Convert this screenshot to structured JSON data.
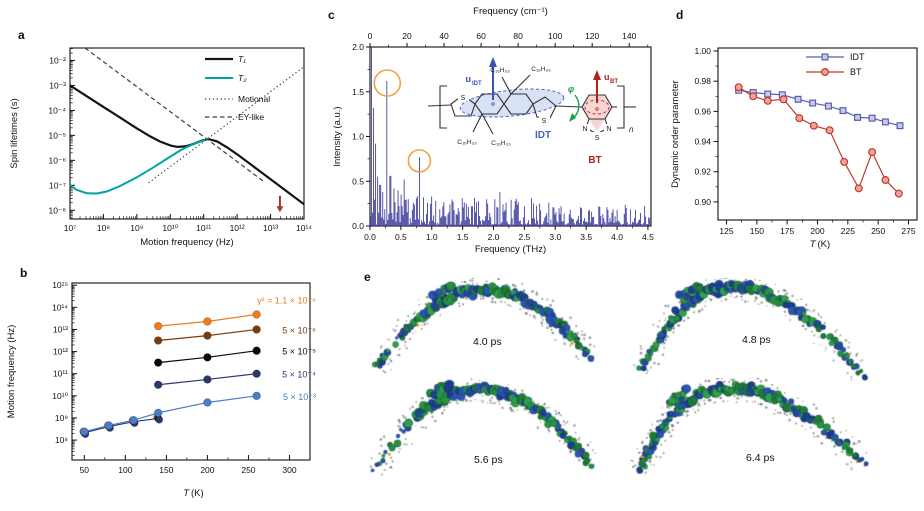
{
  "panels": {
    "a": {
      "letter": "a"
    },
    "b": {
      "letter": "b"
    },
    "c": {
      "letter": "c"
    },
    "d": {
      "letter": "d"
    },
    "e": {
      "letter": "e"
    }
  },
  "inset": {
    "u": "u",
    "idt_sub": "IDT",
    "bt_sub": "BT",
    "phi": "φ",
    "idt_label": "IDT",
    "bt_label": "BT",
    "alkyl": "C₁₆H₃₃",
    "sulfur": "S",
    "nitrogen": "N",
    "repeat": "n"
  },
  "snapshots": [
    {
      "label": "4.0 ps"
    },
    {
      "label": "4.8 ps"
    },
    {
      "label": "5.6 ps"
    },
    {
      "label": "6.4 ps"
    }
  ],
  "chart_data": [
    {
      "id": "a",
      "type": "line",
      "xlabel": "Motion frequency (Hz)",
      "ylabel": "Spin lifetimes (s)",
      "xscale": "log",
      "yscale": "log",
      "xlim_exp": [
        7,
        14
      ],
      "ylim_exp": [
        -8.35,
        -1.5
      ],
      "xtick_exps": [
        7,
        8,
        9,
        10,
        11,
        12,
        13,
        14
      ],
      "xtick_labels": [
        "10⁷",
        "10⁸",
        "10⁹",
        "10¹⁰",
        "10¹¹",
        "10¹²",
        "10¹³",
        "10¹⁴"
      ],
      "ytick_exps": [
        -8,
        -7,
        -6,
        -5,
        -4,
        -3,
        -2
      ],
      "ytick_labels": [
        "10⁻⁸",
        "10⁻⁷",
        "10⁻⁶",
        "10⁻⁵",
        "10⁻⁴",
        "10⁻³",
        "10⁻²"
      ],
      "series": [
        {
          "name": "T₁",
          "italic": true,
          "color": "#141414",
          "style": "solid",
          "width": 2.2,
          "points_log": [
            [
              7,
              -3
            ],
            [
              7.5,
              -3.43
            ],
            [
              8,
              -3.86
            ],
            [
              8.5,
              -4.29
            ],
            [
              9,
              -4.72
            ],
            [
              9.4,
              -5.04
            ],
            [
              9.7,
              -5.25
            ],
            [
              10,
              -5.4
            ],
            [
              10.2,
              -5.46
            ],
            [
              10.45,
              -5.44
            ],
            [
              10.7,
              -5.34
            ],
            [
              10.95,
              -5.21
            ],
            [
              11.15,
              -5.15
            ],
            [
              11.4,
              -5.24
            ],
            [
              11.7,
              -5.48
            ],
            [
              12,
              -5.76
            ],
            [
              12.5,
              -6.26
            ],
            [
              13,
              -6.76
            ],
            [
              13.5,
              -7.26
            ],
            [
              14,
              -7.76
            ]
          ]
        },
        {
          "name": "T₂",
          "italic": true,
          "color": "#00a2a2",
          "style": "solid",
          "width": 2,
          "points_log": [
            [
              7,
              -7
            ],
            [
              7.2,
              -7.18
            ],
            [
              7.5,
              -7.32
            ],
            [
              7.8,
              -7.33
            ],
            [
              8.1,
              -7.25
            ],
            [
              8.5,
              -7.03
            ],
            [
              9,
              -6.68
            ],
            [
              9.5,
              -6.28
            ],
            [
              10,
              -5.85
            ],
            [
              10.3,
              -5.6
            ],
            [
              10.6,
              -5.4
            ],
            [
              10.9,
              -5.24
            ],
            [
              11.15,
              -5.15
            ]
          ]
        },
        {
          "name": "Motional",
          "italic": false,
          "color": "#3f3f3f",
          "style": "dotted",
          "width": 1.2,
          "points_log": [
            [
              9.35,
              -6.9
            ],
            [
              14,
              -2.25
            ]
          ]
        },
        {
          "name": "EY-like",
          "italic": false,
          "color": "#3f3f3f",
          "style": "dashed",
          "width": 1.2,
          "points_log": [
            [
              7.45,
              -1.5
            ],
            [
              12.8,
              -6.85
            ]
          ]
        }
      ],
      "arrow": {
        "x_exp": 13.28,
        "y_from_exp": -7.42,
        "y_to_exp": -8.08,
        "color": "#a93226"
      }
    },
    {
      "id": "b",
      "type": "scatter-line",
      "xlabel": "T (K)",
      "ylabel": "Motion frequency (Hz)",
      "xscale": "linear",
      "yscale": "log",
      "xlim": [
        35,
        325
      ],
      "ylim_exp": [
        7.1,
        15.1
      ],
      "xticks": [
        50,
        100,
        150,
        200,
        250,
        300
      ],
      "ytick_exps": [
        8,
        9,
        10,
        11,
        12,
        13,
        14,
        15
      ],
      "ytick_labels": [
        "10⁸",
        "10⁹",
        "10¹⁰",
        "10¹¹",
        "10¹²",
        "10¹³",
        "10¹⁴",
        "10¹⁵"
      ],
      "series": [
        {
          "name": "γ² = 1.1 × 10⁻⁶",
          "color": "#ee7c17",
          "T": [
            140,
            200,
            260
          ],
          "v_exp": [
            13.15,
            13.36,
            13.68
          ],
          "label_dy": -11
        },
        {
          "name": "5 × 10⁻⁶",
          "color": "#7a3c0d",
          "T": [
            140,
            200,
            260
          ],
          "v_exp": [
            12.5,
            12.72,
            13.0
          ],
          "label_dy": 3
        },
        {
          "name": "5 × 10⁻⁵",
          "color": "#0a0a0a",
          "T": [
            140,
            200,
            260
          ],
          "v_exp": [
            11.5,
            11.74,
            12.04
          ],
          "label_dy": 3
        },
        {
          "name": "5 × 10⁻⁴",
          "color": "#2a3a68",
          "T": [
            140,
            200,
            260
          ],
          "v_exp": [
            10.5,
            10.74,
            11.0
          ],
          "label_dy": 3
        },
        {
          "name": "5 × 10⁻³",
          "color": "#4a7dc9",
          "T": [
            50,
            80,
            110,
            140,
            200,
            260
          ],
          "v_exp": [
            8.38,
            8.66,
            8.9,
            9.23,
            9.7,
            10.0
          ],
          "label_dy": 3
        }
      ],
      "shared_low_T": {
        "T": [
          50,
          80,
          110,
          140
        ],
        "v_exp": [
          8.33,
          8.61,
          8.83,
          8.98
        ],
        "colors": [
          "#ee7c17",
          "#7a3c0d",
          "#0a0a0a",
          "#2a3a68"
        ]
      }
    },
    {
      "id": "c",
      "type": "spectrum",
      "xlabel": "Frequency (THz)",
      "xlabel_top": "Frequency (cm⁻¹)",
      "ylabel": "Intensity (a.u.)",
      "xlim": [
        0,
        4.55
      ],
      "ylim": [
        0,
        2
      ],
      "xticks": [
        0,
        0.5,
        1,
        1.5,
        2,
        2.5,
        3,
        3.5,
        4,
        4.5
      ],
      "xtick_labels": [
        "0.0",
        "0.5",
        "1.0",
        "1.5",
        "2.0",
        "2.5",
        "3.0",
        "3.5",
        "4.0",
        "4.5"
      ],
      "yticks": [
        0,
        0.5,
        1,
        1.5,
        2
      ],
      "ytick_labels": [
        "0.0",
        "0.5",
        "1.0",
        "1.5",
        "2.0"
      ],
      "top_ticks": [
        0,
        20,
        40,
        60,
        80,
        100,
        120,
        140
      ],
      "thz_per_cm1": 0.02998,
      "line_color": "#3b3b9c",
      "peaks": [
        [
          0.025,
          2.0
        ],
        [
          0.055,
          1.32
        ],
        [
          0.09,
          0.92
        ],
        [
          0.125,
          0.55
        ],
        [
          0.165,
          0.46
        ],
        [
          0.2,
          0.38
        ],
        [
          0.28,
          1.62
        ],
        [
          0.33,
          0.56
        ],
        [
          0.38,
          0.42
        ],
        [
          0.45,
          0.4
        ],
        [
          0.5,
          0.35
        ],
        [
          0.55,
          0.52
        ],
        [
          0.62,
          0.3
        ],
        [
          0.7,
          0.26
        ],
        [
          0.75,
          0.31
        ],
        [
          0.8,
          0.77
        ],
        [
          0.86,
          0.32
        ],
        [
          0.93,
          0.26
        ],
        [
          1.0,
          0.33
        ],
        [
          1.07,
          0.28
        ],
        [
          1.18,
          0.22
        ],
        [
          1.3,
          0.24
        ],
        [
          1.42,
          0.2
        ],
        [
          1.5,
          0.31
        ],
        [
          1.56,
          0.25
        ],
        [
          1.65,
          0.22
        ],
        [
          1.75,
          0.28
        ],
        [
          1.9,
          0.25
        ],
        [
          2.02,
          0.3
        ],
        [
          2.1,
          0.38
        ],
        [
          2.2,
          0.26
        ],
        [
          2.35,
          0.28
        ],
        [
          2.5,
          0.22
        ],
        [
          2.62,
          0.31
        ],
        [
          2.75,
          0.25
        ],
        [
          2.9,
          0.26
        ],
        [
          3.1,
          0.22
        ],
        [
          3.25,
          0.18
        ],
        [
          3.4,
          0.21
        ],
        [
          3.55,
          0.18
        ],
        [
          3.7,
          0.22
        ],
        [
          3.85,
          0.18
        ],
        [
          4.0,
          0.18
        ],
        [
          4.15,
          0.2
        ],
        [
          4.3,
          0.18
        ],
        [
          4.45,
          0.22
        ]
      ],
      "noise": {
        "seed": 11,
        "step": 0.0165,
        "base": 0.015
      },
      "circled_peaks": [
        {
          "x": 0.28,
          "y": 1.62,
          "r": 13
        },
        {
          "x": 0.8,
          "y": 0.75,
          "r": 11
        }
      ],
      "circle_color": "#f0a23f"
    },
    {
      "id": "d",
      "type": "scatter-line",
      "xlabel": "T (K)",
      "ylabel": "Dynamic order parameter",
      "xlim": [
        118,
        282
      ],
      "ylim": [
        0.888,
        1.002
      ],
      "xticks": [
        125,
        150,
        175,
        200,
        225,
        250,
        275
      ],
      "yticks": [
        0.9,
        0.92,
        0.94,
        0.96,
        0.98,
        1.0
      ],
      "ytick_labels": [
        "0.90",
        "0.92",
        "0.94",
        "0.96",
        "0.98",
        "1.00"
      ],
      "series": [
        {
          "name": "IDT",
          "marker": "square",
          "line_color": "#585fae",
          "fill": "#c6cbe9",
          "T": [
            135,
            147,
            159,
            171,
            184,
            196,
            209,
            221,
            233,
            245,
            256,
            268
          ],
          "values": [
            0.974,
            0.9725,
            0.9715,
            0.971,
            0.968,
            0.9655,
            0.9635,
            0.9605,
            0.956,
            0.9555,
            0.953,
            0.9505
          ]
        },
        {
          "name": "BT",
          "marker": "circle",
          "line_color": "#c03a2e",
          "fill": "#f2a09a",
          "T": [
            135,
            147,
            159,
            172,
            185,
            197,
            210,
            222,
            234,
            245,
            256,
            267
          ],
          "values": [
            0.976,
            0.97,
            0.967,
            0.968,
            0.9555,
            0.9505,
            0.9475,
            0.9265,
            0.909,
            0.933,
            0.9145,
            0.9055
          ]
        }
      ]
    }
  ],
  "colors": {
    "teal": "#00a2a2",
    "arrow_red": "#a93226",
    "spectrum": "#3b3b9c",
    "circle_orange": "#f0a23f",
    "idt_blue": "#4a5fc0",
    "bt_red": "#ab241c",
    "phi_green": "#16a04c",
    "chain_green": "#27923f",
    "chain_blue": "#2b55b0"
  }
}
